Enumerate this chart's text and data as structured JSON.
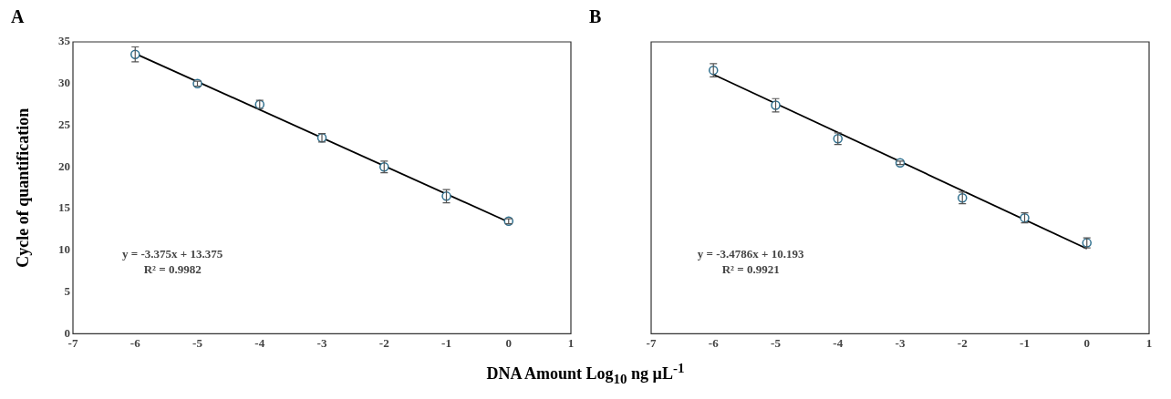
{
  "chart_data": [
    {
      "type": "scatter",
      "title": "A",
      "ylabel": "Cycle of quantification",
      "xlabel": "DNA Amount Log$_{10}$ ng µL$^{-1}$",
      "xlim": [
        -7,
        1
      ],
      "xticks": [
        -7,
        -6,
        -5,
        -4,
        -3,
        -2,
        -1,
        0,
        1
      ],
      "ylim": [
        0,
        35
      ],
      "yticks": [
        0,
        5,
        10,
        15,
        20,
        25,
        30,
        35
      ],
      "grid": false,
      "legend": false,
      "series": [
        {
          "color": "#2e6f8e",
          "marker": "circle",
          "x": [
            -6,
            -5,
            -4,
            -3,
            -2,
            -1,
            0
          ],
          "values": [
            33.5,
            30.0,
            27.5,
            23.5,
            20.0,
            16.5,
            13.5
          ],
          "errors": [
            0.9,
            0.3,
            0.5,
            0.5,
            0.7,
            0.8,
            0.3
          ]
        },
        {
          "type": "line",
          "color": "#000000",
          "line_style": "solid",
          "x": [
            -6,
            0
          ],
          "values": [
            33.6,
            13.4
          ]
        }
      ],
      "annotations": [
        "y = -3.375x + 13.375",
        "R² = 0.9982"
      ]
    },
    {
      "type": "scatter",
      "title": "B",
      "xlim": [
        -7,
        1
      ],
      "xticks": [
        -7,
        -6,
        -5,
        -4,
        -3,
        -2,
        -1,
        0,
        1
      ],
      "ylim": [
        0,
        35
      ],
      "yticks": [
        0,
        5,
        10,
        15,
        20,
        25,
        30,
        35
      ],
      "tick_labels": "x",
      "grid": false,
      "legend": false,
      "series": [
        {
          "color": "#2e6f8e",
          "marker": "circle",
          "x": [
            -6,
            -5,
            -4,
            -3,
            -2,
            -1,
            0
          ],
          "values": [
            31.6,
            27.4,
            23.4,
            20.5,
            16.3,
            13.9,
            10.9
          ],
          "errors": [
            0.8,
            0.8,
            0.7,
            0.2,
            0.7,
            0.6,
            0.6
          ]
        },
        {
          "type": "line",
          "color": "#000000",
          "line_style": "solid",
          "x": [
            -6,
            0
          ],
          "values": [
            31.1,
            10.2
          ]
        }
      ],
      "annotations": [
        "y = -3.4786x + 10.193",
        "R² = 0.9921"
      ]
    }
  ]
}
